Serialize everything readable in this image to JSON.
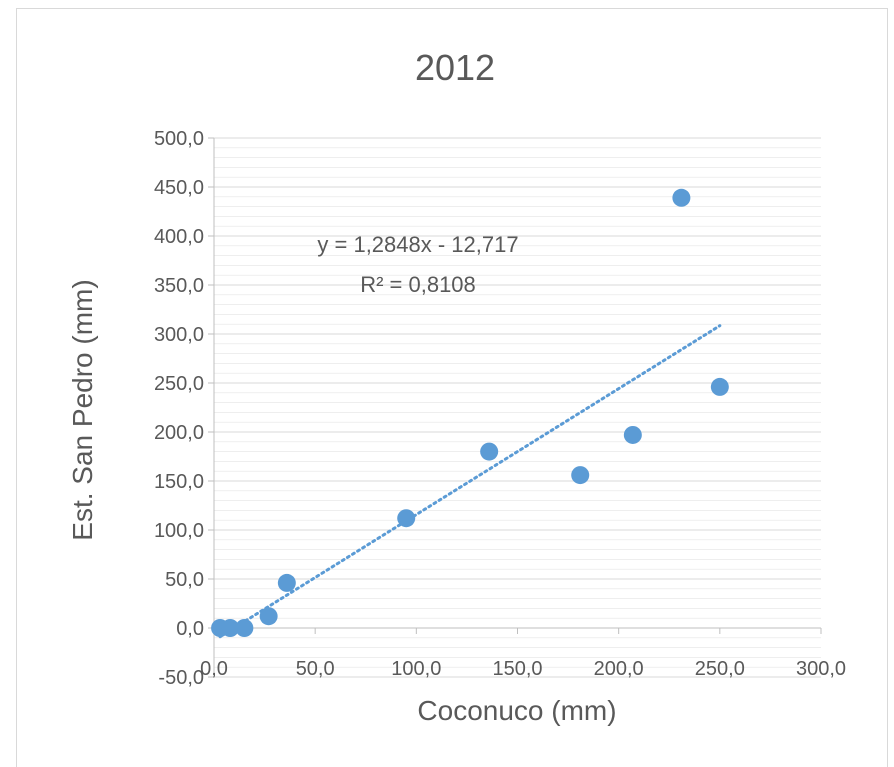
{
  "chart_data": {
    "type": "scatter",
    "title": "2012",
    "xlabel": "Coconuco (mm)",
    "ylabel": "Est. San Pedro (mm)",
    "xlim": [
      0,
      300
    ],
    "ylim": [
      -50,
      500
    ],
    "x_ticks": [
      "0,0",
      "50,0",
      "100,0",
      "150,0",
      "200,0",
      "250,0",
      "300,0"
    ],
    "y_ticks": [
      "-50,0",
      "0,0",
      "50,0",
      "100,0",
      "150,0",
      "200,0",
      "250,0",
      "300,0",
      "350,0",
      "400,0",
      "450,0",
      "500,0"
    ],
    "grid": true,
    "series": [
      {
        "points": [
          {
            "x": 3,
            "y": 0
          },
          {
            "x": 8,
            "y": 0
          },
          {
            "x": 15,
            "y": 0
          },
          {
            "x": 27,
            "y": 12
          },
          {
            "x": 36,
            "y": 46
          },
          {
            "x": 95,
            "y": 112
          },
          {
            "x": 136,
            "y": 180
          },
          {
            "x": 181,
            "y": 156
          },
          {
            "x": 207,
            "y": 197
          },
          {
            "x": 231,
            "y": 439
          },
          {
            "x": 250,
            "y": 246
          }
        ]
      }
    ],
    "trendline": {
      "type": "linear",
      "slope": 1.2848,
      "intercept": -12.717,
      "x_range": [
        3,
        250
      ],
      "equation_label": "y = 1,2848x - 12,717",
      "r2_label": "R² = 0,8108"
    },
    "colors": {
      "marker": "#5b9bd5",
      "trendline": "#5b9bd5",
      "grid": "#d9d9d9",
      "text": "#595959"
    }
  }
}
